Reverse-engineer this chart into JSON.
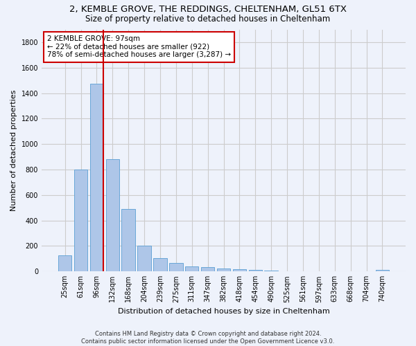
{
  "title_line1": "2, KEMBLE GROVE, THE REDDINGS, CHELTENHAM, GL51 6TX",
  "title_line2": "Size of property relative to detached houses in Cheltenham",
  "xlabel": "Distribution of detached houses by size in Cheltenham",
  "ylabel": "Number of detached properties",
  "categories": [
    "25sqm",
    "61sqm",
    "96sqm",
    "132sqm",
    "168sqm",
    "204sqm",
    "239sqm",
    "275sqm",
    "311sqm",
    "347sqm",
    "382sqm",
    "418sqm",
    "454sqm",
    "490sqm",
    "525sqm",
    "561sqm",
    "597sqm",
    "633sqm",
    "668sqm",
    "704sqm",
    "740sqm"
  ],
  "values": [
    125,
    800,
    1475,
    880,
    490,
    205,
    105,
    65,
    40,
    35,
    25,
    20,
    10,
    5,
    3,
    2,
    2,
    1,
    1,
    1,
    15
  ],
  "bar_color": "#aec6e8",
  "bar_edge_color": "#5a9fd4",
  "vline_color": "#cc0000",
  "vline_x_index": 2,
  "annotation_text": "2 KEMBLE GROVE: 97sqm\n← 22% of detached houses are smaller (922)\n78% of semi-detached houses are larger (3,287) →",
  "annotation_box_color": "#ffffff",
  "annotation_box_edge_color": "#cc0000",
  "ylim": [
    0,
    1900
  ],
  "yticks": [
    0,
    200,
    400,
    600,
    800,
    1000,
    1200,
    1400,
    1600,
    1800
  ],
  "grid_color": "#cccccc",
  "background_color": "#eef2fb",
  "footnote": "Contains HM Land Registry data © Crown copyright and database right 2024.\nContains public sector information licensed under the Open Government Licence v3.0.",
  "title_fontsize": 9.5,
  "subtitle_fontsize": 8.5,
  "axis_label_fontsize": 8,
  "tick_fontsize": 7,
  "annotation_fontsize": 7.5,
  "footnote_fontsize": 6
}
